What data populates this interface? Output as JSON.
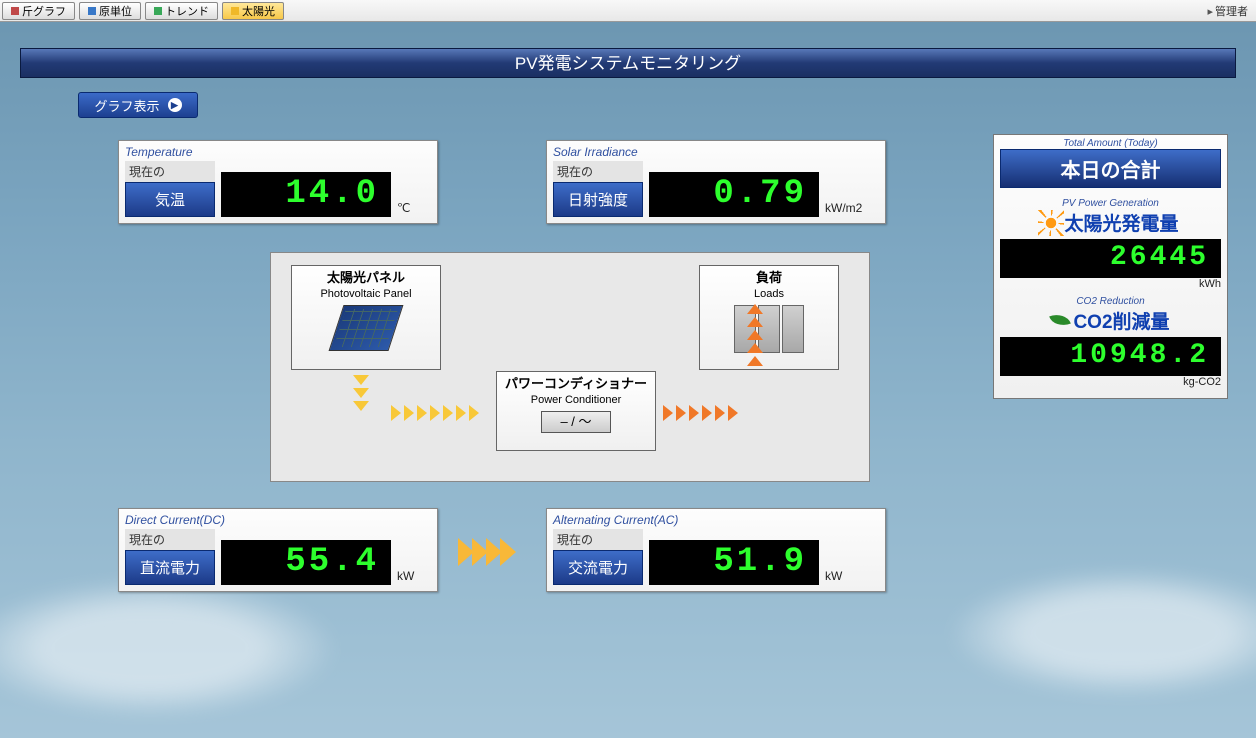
{
  "toolbar": {
    "buttons": [
      {
        "label": "斤グラフ",
        "color": "#c04848",
        "active": false
      },
      {
        "label": "原単位",
        "color": "#3878c8",
        "active": false
      },
      {
        "label": "トレンド",
        "color": "#38a858",
        "active": false
      },
      {
        "label": "太陽光",
        "color": "#f0b828",
        "active": true
      }
    ],
    "admin": "管理者"
  },
  "banner": "PV発電システムモニタリング",
  "graph_button": "グラフ表示",
  "gauges": {
    "temperature": {
      "header": "Temperature",
      "pre": "現在の",
      "label": "気温",
      "value": "14.0",
      "unit": "℃"
    },
    "irradiance": {
      "header": "Solar Irradiance",
      "pre": "現在の",
      "label": "日射強度",
      "value": "0.79",
      "unit": "kW/m2"
    },
    "dc": {
      "header": "Direct Current(DC)",
      "pre": "現在の",
      "label": "直流電力",
      "value": "55.4",
      "unit": "kW"
    },
    "ac": {
      "header": "Alternating Current(AC)",
      "pre": "現在の",
      "label": "交流電力",
      "value": "51.9",
      "unit": "kW"
    }
  },
  "diagram": {
    "pv": {
      "jp": "太陽光パネル",
      "en": "Photovoltaic Panel"
    },
    "pc": {
      "jp": "パワーコンディショナー",
      "en": "Power Conditioner",
      "sym": "– / ～"
    },
    "load": {
      "jp": "負荷",
      "en": "Loads"
    }
  },
  "totals": {
    "header": "Total Amount (Today)",
    "title": "本日の合計",
    "pv": {
      "sub": "PV Power Generation",
      "label": "太陽光発電量",
      "value": "26445",
      "unit": "kWh"
    },
    "co2": {
      "sub": "CO2 Reduction",
      "label": "CO2削減量",
      "value": "10948.2",
      "unit": "kg-CO2"
    }
  },
  "colors": {
    "banner_top": "#5878b8",
    "banner_bottom": "#1a2f62",
    "accent_blue_top": "#3e6dc8",
    "accent_blue_bottom": "#1c3a88",
    "lcd_bg": "#000000",
    "lcd_fg": "#2dff2d",
    "arrow_yellow": "#f8c838",
    "arrow_orange": "#f07828",
    "card_bg": "#f5f5f5",
    "page_bg_top": "#6b95b0",
    "page_bg_bottom": "#a5c5d8"
  }
}
